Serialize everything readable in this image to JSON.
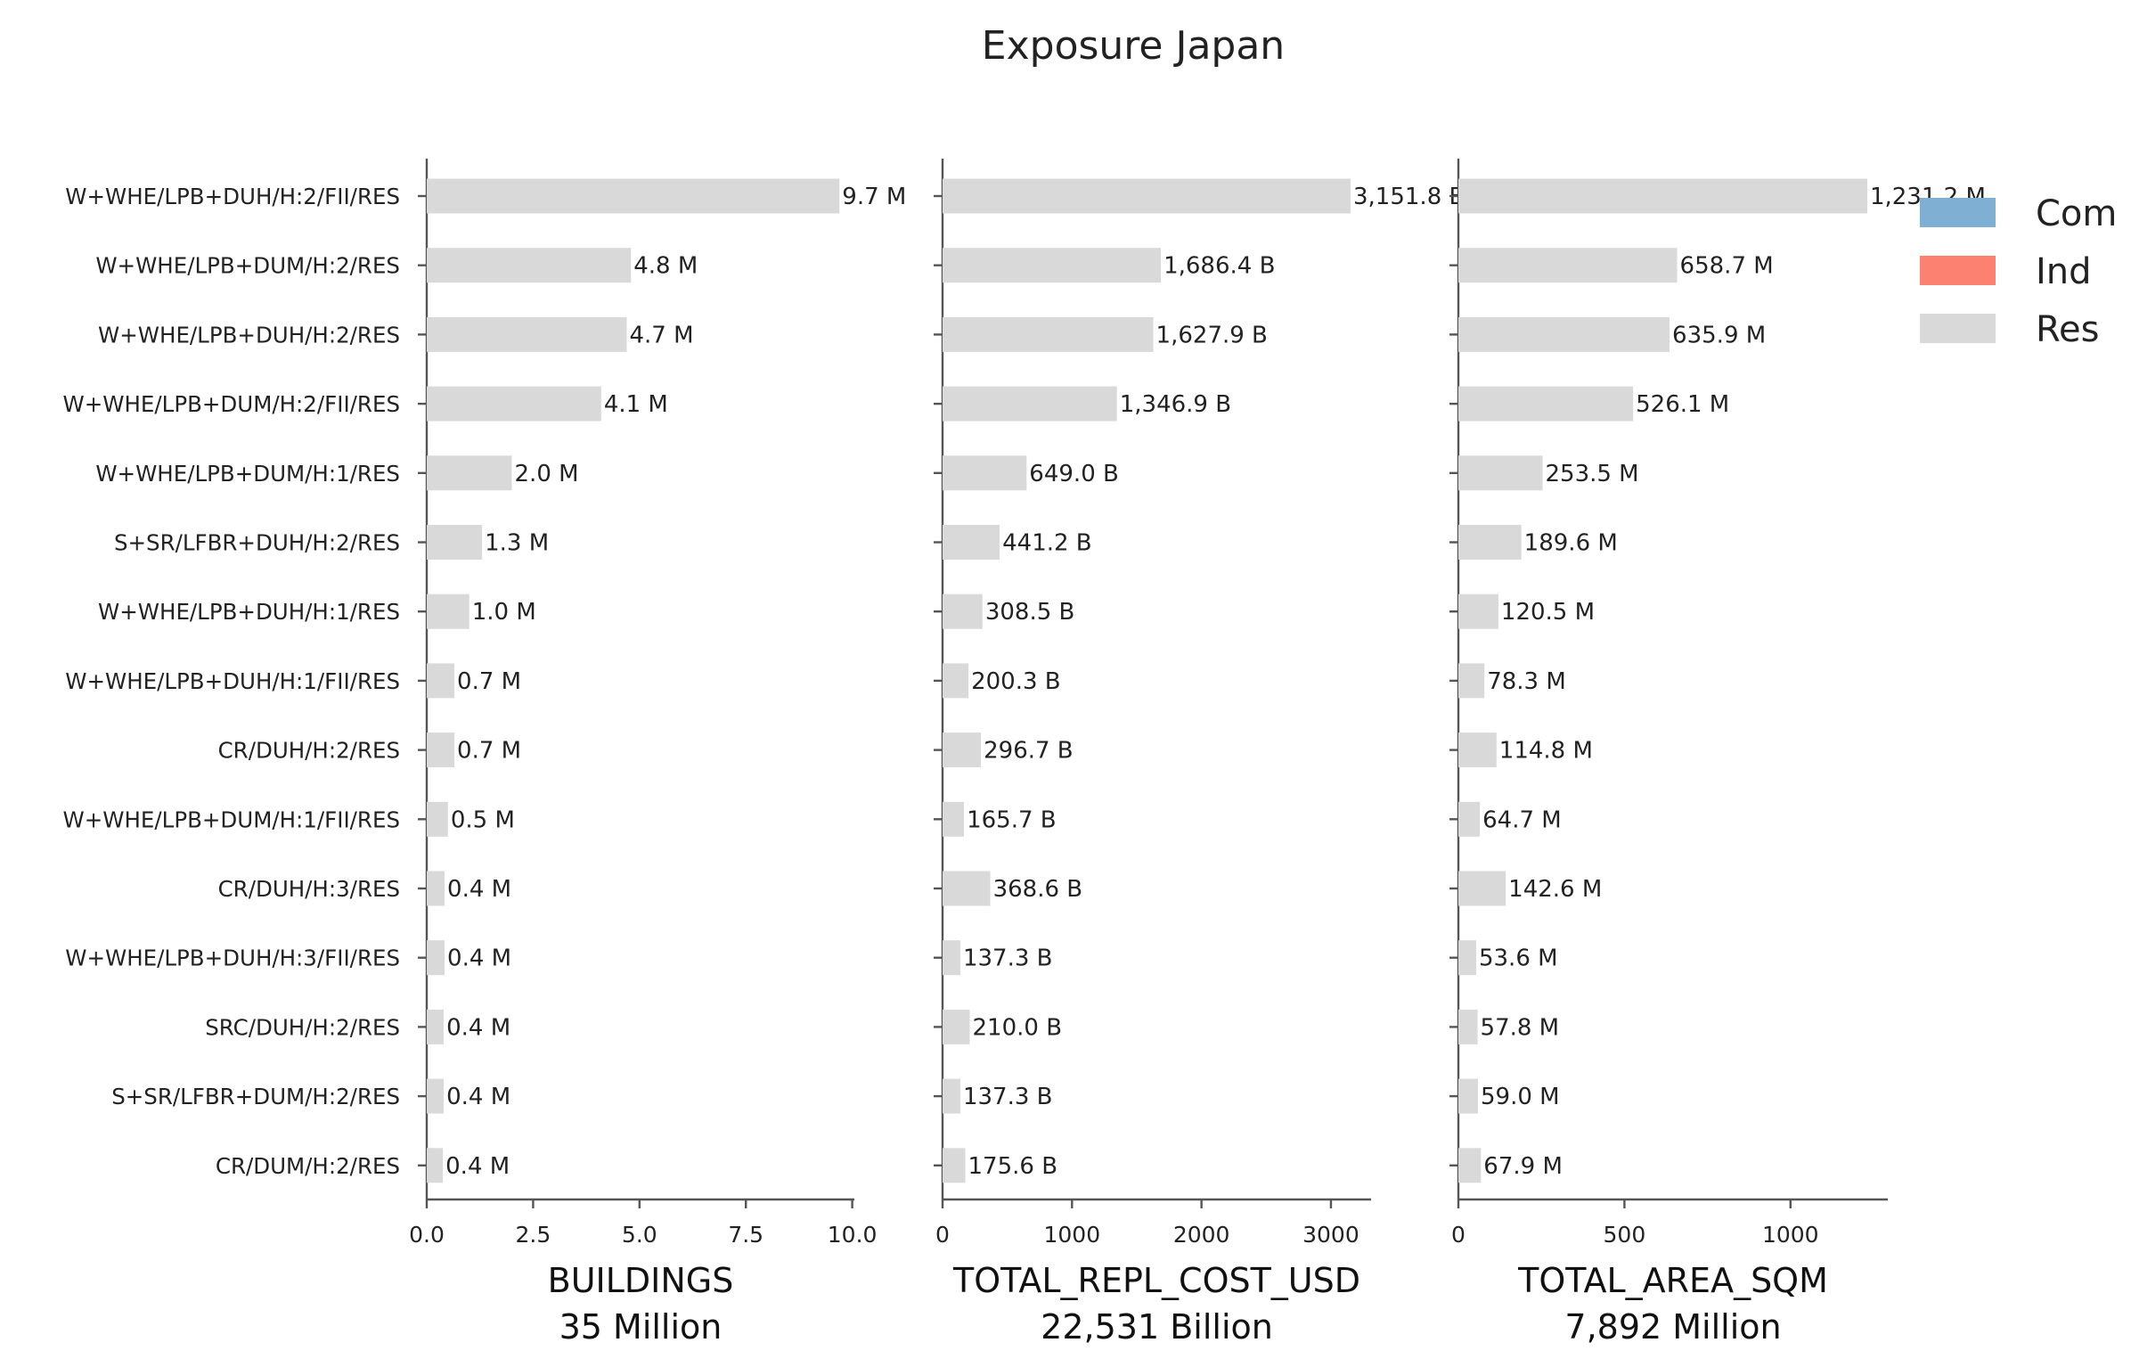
{
  "chart_data": {
    "type": "bar",
    "orientation": "horizontal",
    "title": "Exposure Japan",
    "categories": [
      "W+WHE/LPB+DUH/H:2/FII/RES",
      "W+WHE/LPB+DUM/H:2/RES",
      "W+WHE/LPB+DUH/H:2/RES",
      "W+WHE/LPB+DUM/H:2/FII/RES",
      "W+WHE/LPB+DUM/H:1/RES",
      "S+SR/LFBR+DUH/H:2/RES",
      "W+WHE/LPB+DUH/H:1/RES",
      "W+WHE/LPB+DUH/H:1/FII/RES",
      "CR/DUH/H:2/RES",
      "W+WHE/LPB+DUM/H:1/FII/RES",
      "CR/DUH/H:3/RES",
      "W+WHE/LPB+DUH/H:3/FII/RES",
      "SRC/DUH/H:2/RES",
      "S+SR/LFBR+DUM/H:2/RES",
      "CR/DUM/H:2/RES"
    ],
    "legend": {
      "placement": "top-right",
      "entries": [
        {
          "name": "Com",
          "color": "#7fafd3"
        },
        {
          "name": "Ind",
          "color": "#fc8170"
        },
        {
          "name": "Res",
          "color": "#d9d9d9"
        }
      ]
    },
    "grid": false,
    "panels": [
      {
        "xlabel": "BUILDINGS",
        "total_label": "35 Million",
        "xlim": [
          0,
          10.05
        ],
        "xticks": [
          0,
          2.5,
          5,
          7.5,
          10
        ],
        "xtick_labels": [
          "0.0",
          "2.5",
          "5.0",
          "7.5",
          "10.0"
        ],
        "series": [
          {
            "name": "Res",
            "values": [
              9.7,
              4.8,
              4.7,
              4.1,
              2.0,
              1.3,
              1.0,
              0.65,
              0.65,
              0.5,
              0.42,
              0.42,
              0.4,
              0.4,
              0.38
            ]
          }
        ],
        "value_labels": [
          "9.7 M",
          "4.8 M",
          "4.7 M",
          "4.1 M",
          "2.0 M",
          "1.3 M",
          "1.0 M",
          "0.7 M",
          "0.7 M",
          "0.5 M",
          "0.4 M",
          "0.4 M",
          "0.4 M",
          "0.4 M",
          "0.4 M"
        ]
      },
      {
        "xlabel": "TOTAL_REPL_COST_USD",
        "total_label": "22,531 Billion",
        "xlim": [
          0,
          3310
        ],
        "xticks": [
          0,
          1000,
          2000,
          3000
        ],
        "xtick_labels": [
          "0",
          "1000",
          "2000",
          "3000"
        ],
        "series": [
          {
            "name": "Res",
            "values": [
              3151.8,
              1686.4,
              1627.9,
              1346.9,
              649.0,
              441.2,
              308.5,
              200.3,
              296.7,
              165.7,
              368.6,
              137.3,
              210.0,
              137.3,
              175.6
            ]
          }
        ],
        "value_labels": [
          "3,151.8 B",
          "1,686.4 B",
          "1,627.9 B",
          "1,346.9 B",
          "649.0 B",
          "441.2 B",
          "308.5 B",
          "200.3 B",
          "296.7 B",
          "165.7 B",
          "368.6 B",
          "137.3 B",
          "210.0 B",
          "137.3 B",
          "175.6 B"
        ]
      },
      {
        "xlabel": "TOTAL_AREA_SQM",
        "total_label": "7,892 Million",
        "xlim": [
          0,
          1293
        ],
        "xticks": [
          0,
          500,
          1000
        ],
        "xtick_labels": [
          "0",
          "500",
          "1000"
        ],
        "series": [
          {
            "name": "Res",
            "values": [
              1231.2,
              658.7,
              635.9,
              526.1,
              253.5,
              189.6,
              120.5,
              78.3,
              114.8,
              64.7,
              142.6,
              53.6,
              57.8,
              59.0,
              67.9
            ]
          }
        ],
        "value_labels": [
          "1,231.2 M",
          "658.7 M",
          "635.9 M",
          "526.1 M",
          "253.5 M",
          "189.6 M",
          "120.5 M",
          "78.3 M",
          "114.8 M",
          "64.7 M",
          "142.6 M",
          "53.6 M",
          "57.8 M",
          "59.0 M",
          "67.9 M"
        ]
      }
    ]
  }
}
